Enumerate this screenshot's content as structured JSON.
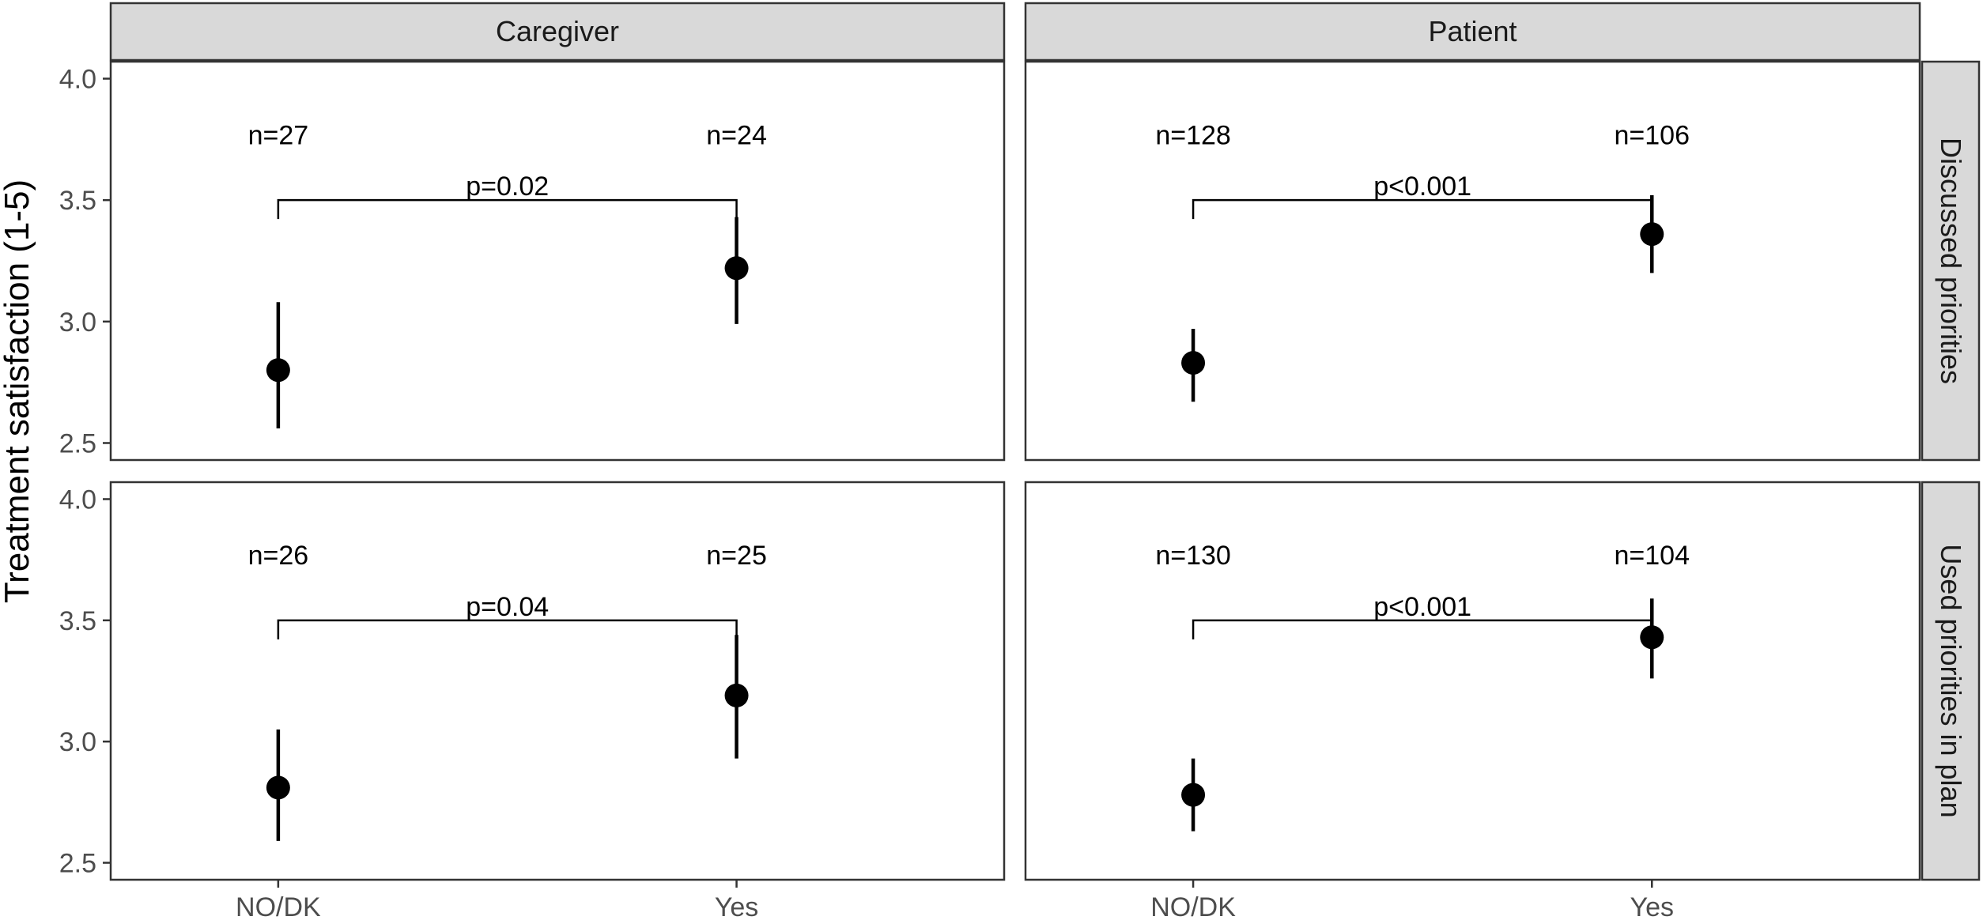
{
  "chart_data": {
    "type": "scatter",
    "ylabel": "Treatment satisfaction (1-5)",
    "xlabel": "",
    "ylim": [
      2.43,
      4.07
    ],
    "yticks": [
      "2.5",
      "3.0",
      "3.5",
      "4.0"
    ],
    "categories": [
      "NO/DK",
      "Yes"
    ],
    "columns": [
      "Caregiver",
      "Patient"
    ],
    "rows": [
      "Discussed priorities",
      "Used priorities in plan"
    ],
    "grid": false,
    "panels": [
      {
        "row": 0,
        "col": 0,
        "points": [
          {
            "x": "NO/DK",
            "mean": 2.8,
            "low": 2.56,
            "high": 3.08,
            "n_label": "n=27"
          },
          {
            "x": "Yes",
            "mean": 3.22,
            "low": 2.99,
            "high": 3.43,
            "n_label": "n=24"
          }
        ],
        "p_label": "p=0.02",
        "bracket_y": 3.5
      },
      {
        "row": 0,
        "col": 1,
        "points": [
          {
            "x": "NO/DK",
            "mean": 2.83,
            "low": 2.67,
            "high": 2.97,
            "n_label": "n=128"
          },
          {
            "x": "Yes",
            "mean": 3.36,
            "low": 3.2,
            "high": 3.52,
            "n_label": "n=106"
          }
        ],
        "p_label": "p<0.001",
        "bracket_y": 3.5
      },
      {
        "row": 1,
        "col": 0,
        "points": [
          {
            "x": "NO/DK",
            "mean": 2.81,
            "low": 2.59,
            "high": 3.05,
            "n_label": "n=26"
          },
          {
            "x": "Yes",
            "mean": 3.19,
            "low": 2.93,
            "high": 3.44,
            "n_label": "n=25"
          }
        ],
        "p_label": "p=0.04",
        "bracket_y": 3.5
      },
      {
        "row": 1,
        "col": 1,
        "points": [
          {
            "x": "NO/DK",
            "mean": 2.78,
            "low": 2.63,
            "high": 2.93,
            "n_label": "n=130"
          },
          {
            "x": "Yes",
            "mean": 3.43,
            "low": 3.26,
            "high": 3.59,
            "n_label": "n=104"
          }
        ],
        "p_label": "p<0.001",
        "bracket_y": 3.5
      }
    ]
  }
}
